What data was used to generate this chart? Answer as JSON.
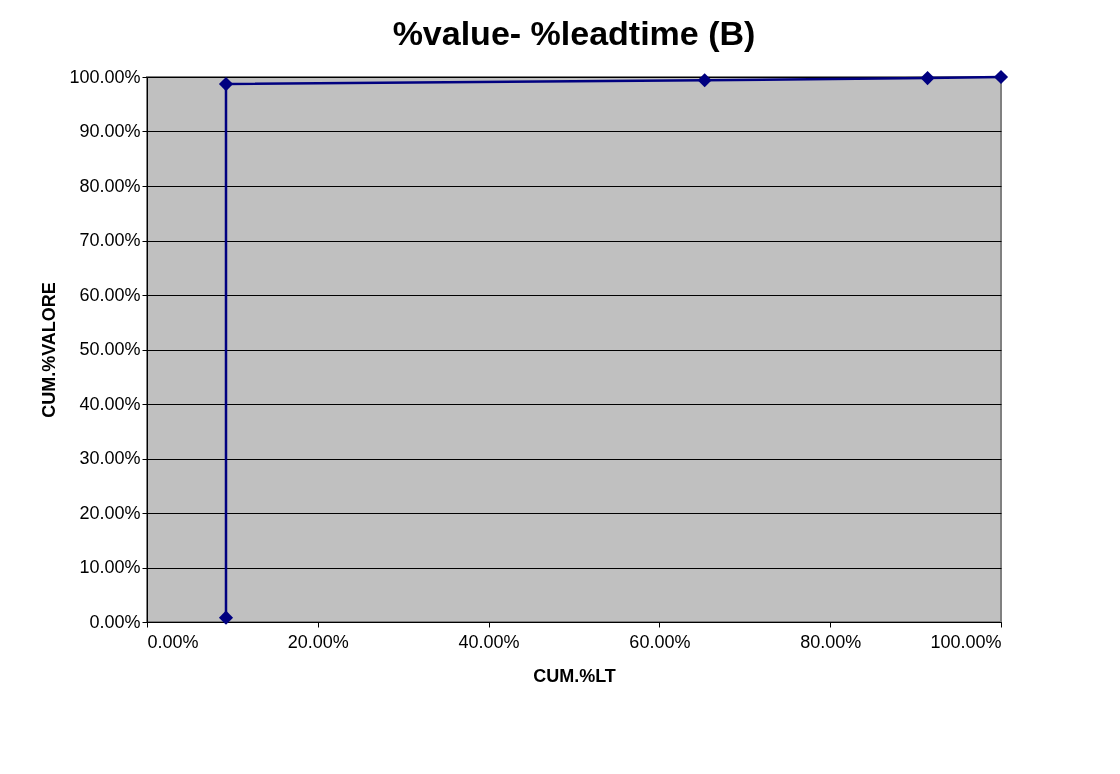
{
  "chart_data": {
    "type": "line",
    "title": "%value- %leadtime (B)",
    "xlabel": "CUM.%LT",
    "ylabel": "CUM.%VALORE",
    "x": [
      9.25,
      9.25,
      65.3,
      91.4,
      100
    ],
    "series": [
      {
        "color": "#000080",
        "values": [
          0.8,
          98.7,
          99.4,
          99.8,
          100
        ]
      }
    ],
    "xlim": [
      0,
      100
    ],
    "ylim": [
      0,
      100
    ],
    "xticks": [
      {
        "value": 0,
        "label": "0.00%"
      },
      {
        "value": 20,
        "label": "20.00%"
      },
      {
        "value": 40,
        "label": "40.00%"
      },
      {
        "value": 60,
        "label": "60.00%"
      },
      {
        "value": 80,
        "label": "80.00%"
      },
      {
        "value": 100,
        "label": "100.00%"
      }
    ],
    "yticks": [
      {
        "value": 0,
        "label": "0.00%"
      },
      {
        "value": 10,
        "label": "10.00%"
      },
      {
        "value": 20,
        "label": "20.00%"
      },
      {
        "value": 30,
        "label": "30.00%"
      },
      {
        "value": 40,
        "label": "40.00%"
      },
      {
        "value": 50,
        "label": "50.00%"
      },
      {
        "value": 60,
        "label": "60.00%"
      },
      {
        "value": 70,
        "label": "70.00%"
      },
      {
        "value": 80,
        "label": "80.00%"
      },
      {
        "value": 90,
        "label": "90.00%"
      },
      {
        "value": 100,
        "label": "100.00%"
      }
    ],
    "grid": "y",
    "marker": "diamond",
    "line_style": "solid"
  }
}
